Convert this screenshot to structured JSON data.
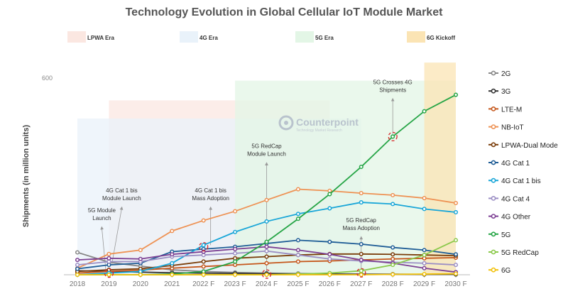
{
  "chart_data": {
    "type": "line",
    "title": "Technology Evolution in Global Cellular IoT Module Market",
    "xlabel": "",
    "ylabel": "Shipments (in million units)",
    "y_tick_labels": [
      "600"
    ],
    "ylim": [
      0,
      600
    ],
    "grid": false,
    "legend_position": "right",
    "watermark": {
      "name": "Counterpoint",
      "tagline": "Technology Market Research"
    },
    "categories": [
      "2018",
      "2019",
      "2020",
      "2021",
      "2022 F",
      "2023 F",
      "2024 F",
      "2025 F",
      "2026 F",
      "2027 F",
      "2028 F",
      "2029 F",
      "2030 F"
    ],
    "eras": [
      {
        "label": "LPWA Era",
        "color": "#fbe7e1",
        "start": "2019",
        "end": "2026 F",
        "y_top": 530
      },
      {
        "label": "4G Era",
        "color": "#e9f2fa",
        "start": "2018",
        "end": "2027 F",
        "y_top": 475
      },
      {
        "label": "5G Era",
        "color": "#e3f6e6",
        "start": "2023 F",
        "end": "2030 F",
        "y_top": 590
      },
      {
        "label": "6G Kickoff",
        "color": "#fbe4b4",
        "start": "2029 F",
        "end": "2030 F",
        "y_top": 645
      }
    ],
    "series": [
      {
        "name": "2G",
        "color": "#888888",
        "values": [
          68,
          38,
          26,
          15,
          10,
          7,
          5,
          4,
          3,
          2,
          2,
          1,
          1
        ]
      },
      {
        "name": "3G",
        "color": "#333333",
        "values": [
          12,
          10,
          8,
          6,
          5,
          4,
          3,
          2,
          2,
          1,
          1,
          1,
          1
        ]
      },
      {
        "name": "LTE-M",
        "color": "#c5561a",
        "values": [
          5,
          10,
          14,
          20,
          25,
          30,
          35,
          40,
          42,
          45,
          48,
          50,
          52
        ]
      },
      {
        "name": "NB-IoT",
        "color": "#ee9254",
        "values": [
          20,
          63,
          75,
          133,
          165,
          193,
          227,
          260,
          255,
          248,
          242,
          233,
          218
        ]
      },
      {
        "name": "LPWA-Dual Mode",
        "color": "#7a3d0a",
        "values": [
          10,
          15,
          18,
          28,
          40,
          50,
          55,
          60,
          63,
          63,
          62,
          60,
          58
        ]
      },
      {
        "name": "4G Cat 1",
        "color": "#1f5d96",
        "values": [
          18,
          30,
          35,
          70,
          78,
          85,
          95,
          105,
          100,
          93,
          83,
          75,
          62
        ]
      },
      {
        "name": "4G Cat 1 bis",
        "color": "#19a6d8",
        "values": [
          0,
          5,
          10,
          35,
          90,
          130,
          162,
          185,
          202,
          220,
          215,
          200,
          190
        ]
      },
      {
        "name": "4G Cat 4",
        "color": "#9b8ec4",
        "values": [
          30,
          40,
          40,
          55,
          60,
          65,
          72,
          60,
          48,
          42,
          38,
          35,
          30
        ]
      },
      {
        "name": "4G Other",
        "color": "#7c3f93",
        "values": [
          45,
          50,
          48,
          62,
          70,
          78,
          85,
          75,
          62,
          45,
          35,
          20,
          8
        ]
      },
      {
        "name": "5G",
        "color": "#26a546",
        "values": [
          0,
          0,
          0,
          2,
          10,
          40,
          100,
          170,
          245,
          328,
          420,
          497,
          547
        ]
      },
      {
        "name": "5G RedCap",
        "color": "#8bc94b",
        "values": [
          0,
          0,
          0,
          0,
          0,
          0,
          0,
          2,
          5,
          12,
          30,
          60,
          105
        ]
      },
      {
        "name": "6G",
        "color": "#f2c20d",
        "values": [
          0,
          0,
          0,
          0,
          0,
          0,
          0,
          0,
          0,
          0,
          1,
          2,
          3
        ]
      }
    ],
    "annotations": [
      {
        "text": [
          "5G Module",
          "Launch"
        ],
        "x": "2019",
        "anchor_y": 5,
        "text_y": 190
      },
      {
        "text": [
          "4G Cat 1 bis",
          "Module Launch"
        ],
        "x": "2019",
        "anchor_y": 30,
        "text_y": 250
      },
      {
        "text": [
          "4G Cat 1 bis",
          "Mass Adoption"
        ],
        "x": "2022 F",
        "anchor_y": 90,
        "text_y": 250
      },
      {
        "text": [
          "5G RedCap",
          "Module Launch"
        ],
        "x": "2024 F",
        "anchor_y": 2,
        "text_y": 385
      },
      {
        "text": [
          "5G RedCap",
          "Mass Adoption"
        ],
        "x": "2027 F",
        "anchor_y": 6,
        "text_y": 160
      },
      {
        "text": [
          "5G Crosses 4G",
          "Shipments"
        ],
        "x": "2028 F",
        "anchor_y": 420,
        "text_y": 580
      }
    ]
  }
}
